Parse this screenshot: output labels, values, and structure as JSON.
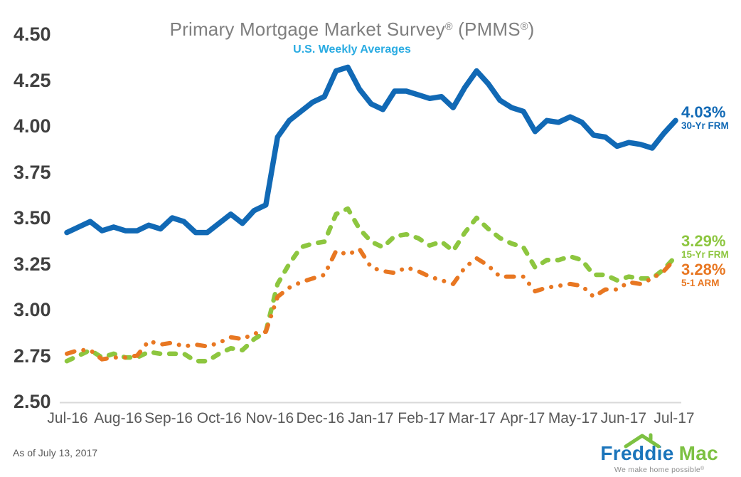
{
  "header": {
    "title_main": "Primary Mortgage Market Survey",
    "title_reg1": "®",
    "title_mid": " (PMMS",
    "title_reg2": "®",
    "title_end": ")",
    "subtitle": "U.S. Weekly Averages"
  },
  "chart_data": {
    "type": "line",
    "title": "Primary Mortgage Market Survey® (PMMS®)",
    "subtitle": "U.S. Weekly Averages",
    "x_labels": [
      "Jul-16",
      "Aug-16",
      "Sep-16",
      "Oct-16",
      "Nov-16",
      "Dec-16",
      "Jan-17",
      "Feb-17",
      "Mar-17",
      "Apr-17",
      "May-17",
      "Jun-17",
      "Jul-17"
    ],
    "y_ticks": [
      "4.50",
      "4.25",
      "4.00",
      "3.75",
      "3.50",
      "3.25",
      "3.00",
      "2.75",
      "2.50"
    ],
    "ylim": [
      2.5,
      4.5
    ],
    "grid": "bottom-axis-line-only",
    "legend_position": "series-end-labels-right",
    "axis_line_color": "#d9d9d9",
    "series": [
      {
        "name": "30-Yr FRM",
        "end_label": "4.03%",
        "color": "#1169b5",
        "style": "solid",
        "values": [
          3.42,
          3.45,
          3.48,
          3.43,
          3.45,
          3.43,
          3.43,
          3.46,
          3.44,
          3.5,
          3.48,
          3.42,
          3.42,
          3.47,
          3.52,
          3.47,
          3.54,
          3.57,
          3.94,
          4.03,
          4.08,
          4.13,
          4.16,
          4.3,
          4.32,
          4.2,
          4.12,
          4.09,
          4.19,
          4.19,
          4.17,
          4.15,
          4.16,
          4.1,
          4.21,
          4.3,
          4.23,
          4.14,
          4.1,
          4.08,
          3.97,
          4.03,
          4.02,
          4.05,
          4.02,
          3.95,
          3.94,
          3.89,
          3.91,
          3.9,
          3.88,
          3.96,
          4.03
        ]
      },
      {
        "name": "15-Yr FRM",
        "end_label": "3.29%",
        "color": "#8dc63f",
        "style": "dashed",
        "values": [
          2.72,
          2.75,
          2.78,
          2.74,
          2.76,
          2.74,
          2.74,
          2.77,
          2.76,
          2.76,
          2.76,
          2.72,
          2.72,
          2.76,
          2.79,
          2.78,
          2.84,
          2.88,
          3.14,
          3.25,
          3.34,
          3.36,
          3.37,
          3.52,
          3.55,
          3.44,
          3.37,
          3.34,
          3.4,
          3.41,
          3.39,
          3.35,
          3.37,
          3.32,
          3.42,
          3.5,
          3.44,
          3.39,
          3.36,
          3.34,
          3.23,
          3.27,
          3.27,
          3.29,
          3.27,
          3.19,
          3.19,
          3.16,
          3.18,
          3.17,
          3.17,
          3.22,
          3.29
        ]
      },
      {
        "name": "5-1 ARM",
        "end_label": "3.28%",
        "color": "#e87722",
        "style": "dash-dot-dot",
        "values": [
          2.76,
          2.78,
          2.78,
          2.73,
          2.74,
          2.74,
          2.75,
          2.83,
          2.81,
          2.82,
          2.8,
          2.81,
          2.8,
          2.82,
          2.85,
          2.84,
          2.87,
          2.88,
          3.07,
          3.12,
          3.15,
          3.17,
          3.19,
          3.32,
          3.3,
          3.33,
          3.23,
          3.21,
          3.2,
          3.23,
          3.21,
          3.18,
          3.16,
          3.14,
          3.23,
          3.28,
          3.24,
          3.18,
          3.18,
          3.18,
          3.1,
          3.12,
          3.13,
          3.14,
          3.13,
          3.07,
          3.11,
          3.11,
          3.15,
          3.14,
          3.17,
          3.21,
          3.28
        ]
      }
    ]
  },
  "footer": {
    "as_of": "As of July 13, 2017",
    "logo": {
      "part1": "Freddie",
      "part2": "Mac",
      "tagline": "We make home possible",
      "tagline_reg": "®",
      "blue": "#1b75bb",
      "green": "#7dc142"
    }
  }
}
